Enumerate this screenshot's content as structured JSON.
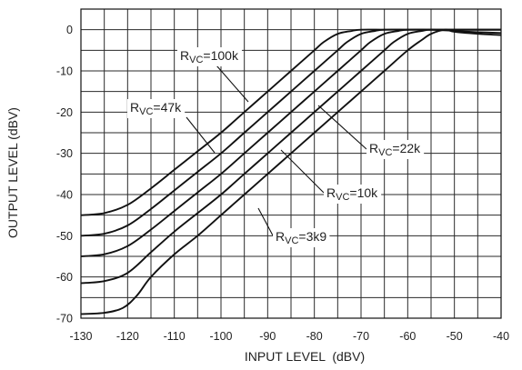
{
  "chart_data": {
    "type": "line",
    "title": "",
    "xlabel": "INPUT LEVEL  (dBV)",
    "ylabel": "OUTPUT LEVEL (dBV)",
    "xlim": [
      -130,
      -40
    ],
    "ylim": [
      -70,
      5
    ],
    "x_ticks": [
      -130,
      -120,
      -110,
      -100,
      -90,
      -80,
      -70,
      -60,
      -50,
      -40
    ],
    "y_ticks": [
      0,
      -10,
      -20,
      -30,
      -40,
      -50,
      -60,
      -70
    ],
    "grid": true,
    "series": [
      {
        "name": "RVC=100k",
        "x": [
          -130,
          -125,
          -120,
          -115,
          -110,
          -105,
          -100,
          -95,
          -90,
          -85,
          -80,
          -78,
          -75,
          -72,
          -70,
          -65,
          -60,
          -55,
          -50,
          -45,
          -40
        ],
        "y": [
          -45,
          -44.5,
          -42.5,
          -38.5,
          -34,
          -29.5,
          -25,
          -20,
          -15,
          -10,
          -5,
          -3,
          -1,
          -0.3,
          0,
          0,
          0,
          0,
          0,
          0,
          0
        ]
      },
      {
        "name": "RVC=47k",
        "x": [
          -130,
          -125,
          -120,
          -115,
          -110,
          -105,
          -100,
          -95,
          -90,
          -85,
          -80,
          -75,
          -73,
          -70,
          -67,
          -65,
          -60,
          -55,
          -50,
          -45,
          -40
        ],
        "y": [
          -50,
          -49.5,
          -47.5,
          -43.5,
          -39,
          -34.5,
          -30,
          -25,
          -20,
          -15,
          -10,
          -5,
          -3,
          -1,
          -0.3,
          0,
          0,
          0,
          0,
          0,
          0
        ]
      },
      {
        "name": "RVC=22k",
        "x": [
          -130,
          -125,
          -120,
          -115,
          -110,
          -105,
          -100,
          -95,
          -90,
          -85,
          -80,
          -75,
          -70,
          -68,
          -65,
          -62,
          -60,
          -55,
          -50,
          -45,
          -40
        ],
        "y": [
          -55,
          -54.5,
          -52.5,
          -48.5,
          -44,
          -39.5,
          -35,
          -30,
          -25,
          -20,
          -15,
          -10,
          -5,
          -3,
          -1,
          -0.3,
          0,
          0,
          0,
          0,
          0
        ]
      },
      {
        "name": "RVC=10k",
        "x": [
          -130,
          -125,
          -120,
          -115,
          -110,
          -105,
          -100,
          -95,
          -90,
          -85,
          -80,
          -75,
          -70,
          -65,
          -63,
          -60,
          -57,
          -55,
          -50,
          -45,
          -40
        ],
        "y": [
          -61.5,
          -61,
          -59,
          -54,
          -49,
          -44.5,
          -40,
          -35,
          -30,
          -25,
          -20,
          -15,
          -10,
          -5,
          -3,
          -1,
          -0.3,
          0,
          -0.3,
          -0.6,
          -0.8
        ]
      },
      {
        "name": "RVC=3k9",
        "x": [
          -130,
          -125,
          -121,
          -118,
          -115,
          -110,
          -105,
          -100,
          -95,
          -90,
          -85,
          -80,
          -75,
          -70,
          -65,
          -60,
          -57,
          -55,
          -52,
          -50,
          -45,
          -40
        ],
        "y": [
          -69,
          -68.7,
          -67.5,
          -64.5,
          -60,
          -54.5,
          -50,
          -45,
          -40,
          -35,
          -30,
          -25,
          -20,
          -15,
          -10,
          -5,
          -2.5,
          -1,
          0,
          -0.5,
          -1,
          -1.3
        ]
      }
    ],
    "annotations": [
      {
        "main": "R",
        "sub": "VC",
        "rest": "=100k"
      },
      {
        "main": "R",
        "sub": "VC",
        "rest": "=47k"
      },
      {
        "main": "R",
        "sub": "VC",
        "rest": "=22k"
      },
      {
        "main": "R",
        "sub": "VC",
        "rest": "=10k"
      },
      {
        "main": "R",
        "sub": "VC",
        "rest": "=3k9"
      }
    ],
    "colors": {
      "line": "#111111",
      "grid": "#2a2a2a",
      "text": "#222222"
    }
  }
}
